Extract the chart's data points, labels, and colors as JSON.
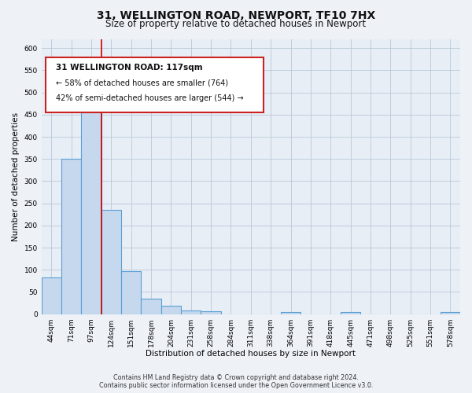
{
  "title_line1": "31, WELLINGTON ROAD, NEWPORT, TF10 7HX",
  "title_line2": "Size of property relative to detached houses in Newport",
  "xlabel": "Distribution of detached houses by size in Newport",
  "ylabel": "Number of detached properties",
  "bin_labels": [
    "44sqm",
    "71sqm",
    "97sqm",
    "124sqm",
    "151sqm",
    "178sqm",
    "204sqm",
    "231sqm",
    "258sqm",
    "284sqm",
    "311sqm",
    "338sqm",
    "364sqm",
    "391sqm",
    "418sqm",
    "445sqm",
    "471sqm",
    "498sqm",
    "525sqm",
    "551sqm",
    "578sqm"
  ],
  "bar_values": [
    83,
    350,
    480,
    235,
    97,
    35,
    18,
    8,
    6,
    0,
    0,
    0,
    5,
    0,
    0,
    4,
    0,
    0,
    0,
    0,
    5
  ],
  "bar_color": "#c5d8ed",
  "bar_edge_color": "#5a9fd4",
  "red_line_x": 3,
  "red_line_color": "#cc0000",
  "ylim": [
    0,
    620
  ],
  "yticks": [
    0,
    50,
    100,
    150,
    200,
    250,
    300,
    350,
    400,
    450,
    500,
    550,
    600
  ],
  "ann_line1": "31 WELLINGTON ROAD: 117sqm",
  "ann_line2": "← 58% of detached houses are smaller (764)",
  "ann_line3": "42% of semi-detached houses are larger (544) →",
  "footer_line1": "Contains HM Land Registry data © Crown copyright and database right 2024.",
  "footer_line2": "Contains public sector information licensed under the Open Government Licence v3.0.",
  "bg_color": "#eef2f7",
  "plot_bg_color": "#e8eef6"
}
